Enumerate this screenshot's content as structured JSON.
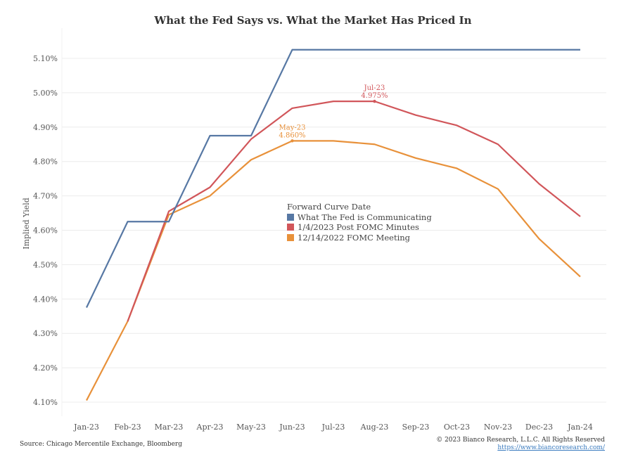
{
  "chart_data": {
    "type": "line",
    "title": "What the Fed Says vs. What the Market Has Priced In",
    "xlabel": "",
    "ylabel": "Implied Yield",
    "categories": [
      "Jan-23",
      "Feb-23",
      "Mar-23",
      "Apr-23",
      "May-23",
      "Jun-23",
      "Jul-23",
      "Aug-23",
      "Sep-23",
      "Oct-23",
      "Nov-23",
      "Dec-23",
      "Jan-24"
    ],
    "yticks": [
      "4.10%",
      "4.20%",
      "4.30%",
      "4.40%",
      "4.50%",
      "4.60%",
      "4.70%",
      "4.80%",
      "4.90%",
      "5.00%",
      "5.10%"
    ],
    "ylim": [
      4.1,
      5.1
    ],
    "grid": "horizontal",
    "legend": {
      "title": "Forward Curve Date",
      "placement": "center"
    },
    "series": [
      {
        "name": "What The Fed is Communicating",
        "color": "#5778a4",
        "values": [
          4.375,
          4.625,
          4.625,
          4.875,
          4.875,
          5.125,
          5.125,
          5.125,
          5.125,
          5.125,
          5.125,
          5.125,
          5.125
        ]
      },
      {
        "name": "1/4/2023 Post FOMC Minutes",
        "color": "#d1565a",
        "values": [
          null,
          4.335,
          4.655,
          4.725,
          4.865,
          4.955,
          4.975,
          4.975,
          4.935,
          4.905,
          4.85,
          4.735,
          4.64
        ]
      },
      {
        "name": "12/14/2022 FOMC Meeting",
        "color": "#e8913a",
        "values": [
          4.105,
          4.335,
          4.645,
          4.7,
          4.805,
          4.86,
          4.86,
          4.85,
          4.81,
          4.78,
          4.72,
          4.575,
          4.465
        ]
      }
    ],
    "annotations": [
      {
        "series": 1,
        "x": "Aug-23",
        "label": "Jul-23",
        "value": "4.975%"
      },
      {
        "series": 2,
        "x": "Jun-23",
        "label": "May-23",
        "value": "4.860%"
      }
    ]
  },
  "footer": {
    "source": "Source: Chicago Mercentile Exchange, Bloomberg",
    "copyright": "© 2023 Bianco Research, L.L.C. All Rights Reserved",
    "link": "https://www.biancoresearch.com/"
  }
}
